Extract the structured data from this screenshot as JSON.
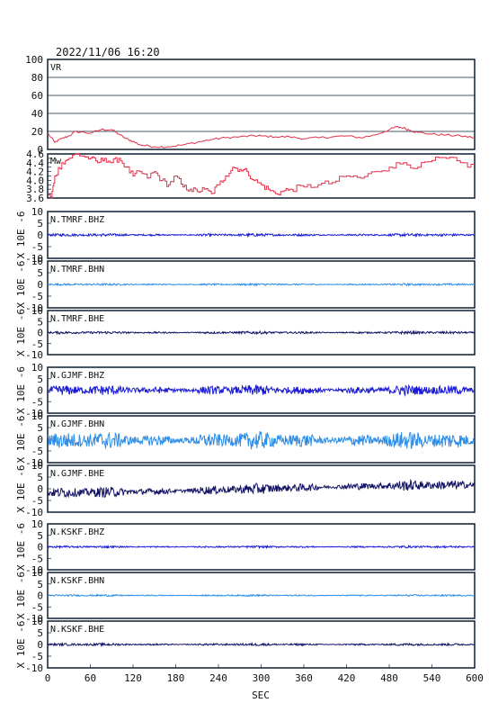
{
  "chart_data": {
    "type": "line",
    "title": "2022/11/06 16:20",
    "xlabel": "SEC",
    "xlim": [
      0,
      600
    ],
    "x_ticks": [
      0,
      60,
      120,
      180,
      240,
      300,
      360,
      420,
      480,
      540,
      600
    ],
    "ylabel_waveform": "X 10E -6",
    "colors": {
      "vr": "#e0304a",
      "mw": "#e0304a",
      "frame": "#0d1f33",
      "bhz": "#1a1ad6",
      "bhn": "#2e8de6",
      "bhe": "#141466"
    },
    "vr": {
      "label": "VR",
      "ylim": [
        0,
        100
      ],
      "y_ticks": [
        0,
        20,
        40,
        60,
        80,
        100
      ],
      "grid": true,
      "x": [
        0,
        10,
        20,
        30,
        40,
        60,
        75,
        90,
        100,
        110,
        120,
        130,
        150,
        170,
        190,
        210,
        230,
        250,
        270,
        290,
        300,
        320,
        340,
        360,
        380,
        400,
        420,
        440,
        460,
        480,
        490,
        500,
        510,
        520,
        540,
        560,
        580,
        600
      ],
      "y": [
        18,
        8,
        12,
        15,
        20,
        18,
        22,
        22,
        17,
        12,
        9,
        5,
        3,
        3,
        5,
        8,
        11,
        13,
        14,
        15,
        15,
        14,
        14,
        12,
        13,
        14,
        15,
        13,
        16,
        22,
        25,
        24,
        21,
        19,
        17,
        16,
        15,
        13
      ]
    },
    "mw": {
      "label": "Mw",
      "ylim": [
        3.6,
        4.6
      ],
      "y_ticks": [
        3.6,
        3.7,
        3.8,
        3.9,
        4.0,
        4.1,
        4.2,
        4.3,
        4.4,
        4.5,
        4.6
      ],
      "y_tick_labels": [
        "3.6",
        "",
        "3.8",
        "",
        "4.0",
        "",
        "4.2",
        "",
        "4.4",
        "",
        "4.6"
      ],
      "x": [
        0,
        5,
        10,
        20,
        30,
        40,
        50,
        60,
        70,
        80,
        90,
        100,
        110,
        120,
        130,
        140,
        150,
        160,
        170,
        180,
        190,
        200,
        210,
        220,
        230,
        240,
        250,
        260,
        270,
        280,
        290,
        300,
        310,
        320,
        330,
        340,
        360,
        380,
        400,
        420,
        440,
        460,
        480,
        500,
        520,
        540,
        560,
        580,
        600
      ],
      "y": [
        3.7,
        3.6,
        4.1,
        4.4,
        4.5,
        4.6,
        4.55,
        4.5,
        4.4,
        4.5,
        4.4,
        4.5,
        4.3,
        4.1,
        4.2,
        4.05,
        4.2,
        4.0,
        3.9,
        4.1,
        3.85,
        3.8,
        3.75,
        3.8,
        3.7,
        3.9,
        4.1,
        4.3,
        4.25,
        4.2,
        4.0,
        3.9,
        3.8,
        3.7,
        3.75,
        3.8,
        3.85,
        3.9,
        3.95,
        4.1,
        4.05,
        4.2,
        4.3,
        4.4,
        4.3,
        4.45,
        4.5,
        4.4,
        4.3
      ]
    },
    "waveforms": {
      "ylim": [
        -10,
        10
      ],
      "y_ticks": [
        -10,
        -5,
        0,
        5,
        10
      ],
      "series": [
        {
          "name": "N.TMRF.BHZ",
          "component": "bhz",
          "amplitude": 0.4,
          "offset": 0
        },
        {
          "name": "N.TMRF.BHN",
          "component": "bhn",
          "amplitude": 0.3,
          "offset": 0
        },
        {
          "name": "N.TMRF.BHE",
          "component": "bhe",
          "amplitude": 0.4,
          "offset": 0
        },
        {
          "name": "N.GJMF.BHZ",
          "component": "bhz",
          "amplitude": 1.5,
          "offset": 0
        },
        {
          "name": "N.GJMF.BHN",
          "component": "bhn",
          "amplitude": 2.5,
          "offset": -0.5
        },
        {
          "name": "N.GJMF.BHE",
          "component": "bhe",
          "amplitude": 1.5,
          "offset": 0
        },
        {
          "name": "N.KSKF.BHZ",
          "component": "bhz",
          "amplitude": 0.3,
          "offset": 0
        },
        {
          "name": "N.KSKF.BHN",
          "component": "bhn",
          "amplitude": 0.25,
          "offset": 0
        },
        {
          "name": "N.KSKF.BHE",
          "component": "bhe",
          "amplitude": 0.35,
          "offset": 0
        }
      ]
    }
  }
}
